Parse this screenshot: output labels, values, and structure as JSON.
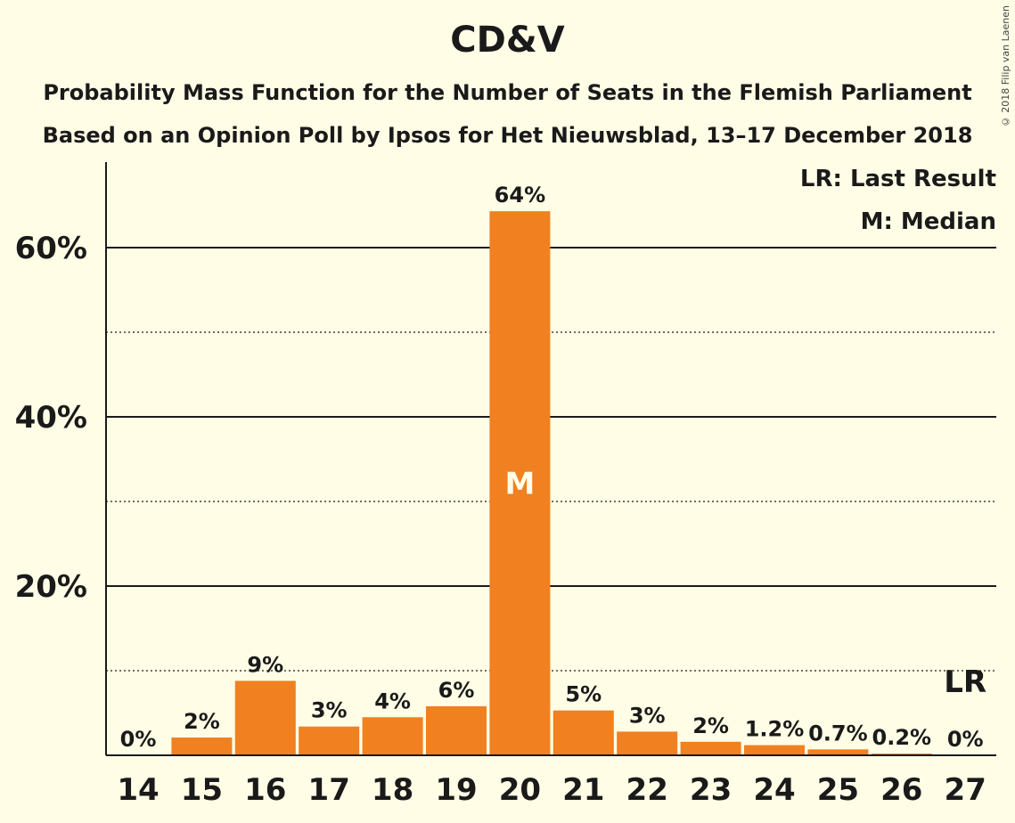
{
  "header": {
    "title": "CD&V",
    "subtitle_1": "Probability Mass Function for the Number of Seats in the Flemish Parliament",
    "subtitle_2": "Based on an Opinion Poll by Ipsos for Het Nieuwsblad, 13–17 December 2018",
    "copyright": "© 2018 Filip van Laenen"
  },
  "legend": {
    "last_result": "LR: Last Result",
    "median": "M: Median"
  },
  "colors": {
    "bar": "#f08020",
    "background": "#fffde6",
    "text": "#1a1a1a"
  },
  "chart_data": {
    "type": "bar",
    "categories": [
      "14",
      "15",
      "16",
      "17",
      "18",
      "19",
      "20",
      "21",
      "22",
      "23",
      "24",
      "25",
      "26",
      "27"
    ],
    "values": [
      0,
      2.1,
      8.8,
      3.4,
      4.5,
      5.8,
      64.3,
      5.3,
      2.8,
      1.6,
      1.2,
      0.7,
      0.2,
      0
    ],
    "data_labels": [
      "0%",
      "2%",
      "9%",
      "3%",
      "4%",
      "6%",
      "64%",
      "5%",
      "3%",
      "2%",
      "1.2%",
      "0.7%",
      "0.2%",
      "0%"
    ],
    "y_ticks": [
      {
        "value": 20,
        "label": "20%"
      },
      {
        "value": 40,
        "label": "40%"
      },
      {
        "value": 60,
        "label": "60%"
      }
    ],
    "minor_gridlines": [
      10,
      30,
      50
    ],
    "ylim": [
      0,
      70
    ],
    "median": {
      "category": "20",
      "label": "M"
    },
    "last_result": {
      "category": "27",
      "label": "LR"
    },
    "grid": true,
    "legend_position": "top-right"
  }
}
